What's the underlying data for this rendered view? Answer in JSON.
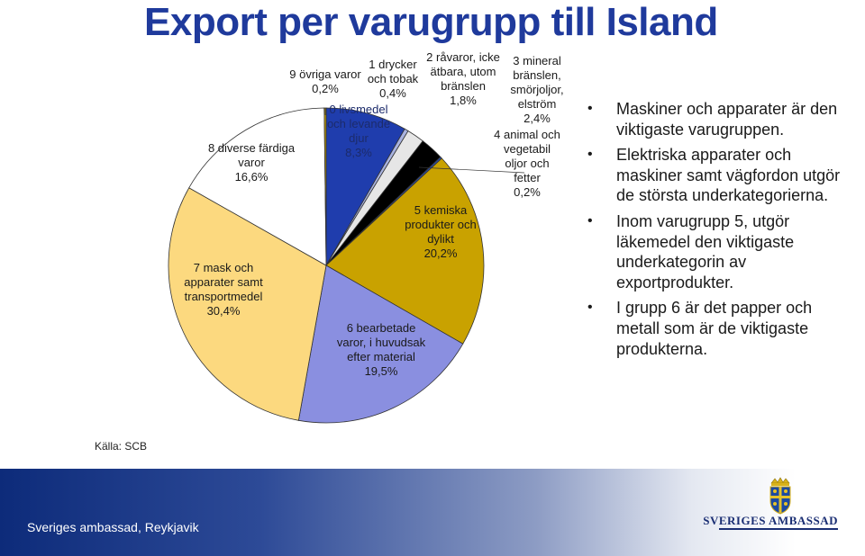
{
  "title": "Export per varugrupp till Island",
  "source": "Källa: SCB",
  "chart_data": {
    "type": "pie",
    "title": "",
    "slices": [
      {
        "label": "0 livsmedel och levande djur",
        "label_lines": [
          "0 livsmedel",
          "och levande",
          "djur"
        ],
        "value_text": "8,3%",
        "value": 8.3,
        "color": "#1f3dad"
      },
      {
        "label": "1 drycker och tobak",
        "label_lines": [
          "1 drycker",
          "och tobak"
        ],
        "value_text": "0,4%",
        "value": 0.4,
        "color": "#a9b3e0"
      },
      {
        "label": "2 råvaror, icke ätbara, utom bränslen",
        "label_lines": [
          "2 råvaror, icke",
          "ätbara, utom",
          "bränslen"
        ],
        "value_text": "1,8%",
        "value": 1.8,
        "color": "#e6e6e6"
      },
      {
        "label": "3 mineral bränslen, smörjoljor, elström",
        "label_lines": [
          "3 mineral",
          "bränslen,",
          "smörjoljor,",
          "elström"
        ],
        "value_text": "2,4%",
        "value": 2.4,
        "color": "#000000"
      },
      {
        "label": "4 animal och vegetabil oljor och fetter",
        "label_lines": [
          "4 animal och",
          "vegetabil",
          "oljor och",
          "fetter"
        ],
        "value_text": "0,2%",
        "value": 0.2,
        "color": "#2a4aa0"
      },
      {
        "label": "5 kemiska produkter och dylikt",
        "label_lines": [
          "5 kemiska",
          "produkter och",
          "dylikt"
        ],
        "value_text": "20,2%",
        "value": 20.2,
        "color": "#c9a200"
      },
      {
        "label": "6 bearbetade varor, i huvudsak efter material",
        "label_lines": [
          "6 bearbetade",
          "varor, i huvudsak",
          "efter material"
        ],
        "value_text": "19,5%",
        "value": 19.5,
        "color": "#8a8fe0"
      },
      {
        "label": "7 mask och apparater samt transportmedel",
        "label_lines": [
          "7 mask och",
          "apparater samt",
          "transportmedel"
        ],
        "value_text": "30,4%",
        "value": 30.4,
        "color": "#fcd97f"
      },
      {
        "label": "8 diverse färdiga varor",
        "label_lines": [
          "8 diverse färdiga",
          "varor"
        ],
        "value_text": "16,6%",
        "value": 16.6,
        "color": "#ffffff"
      },
      {
        "label": "9 övriga varor",
        "label_lines": [
          "9 övriga varor"
        ],
        "value_text": "0,2%",
        "value": 0.2,
        "color": "#c9a200"
      }
    ],
    "legend": "none",
    "start_angle_deg": 0,
    "direction": "clockwise"
  },
  "notes": [
    "Maskiner och apparater är den viktigaste varugruppen.",
    "Elektriska apparater och maskiner samt vägfordon utgör de största underkategorierna.",
    "Inom varugrupp 5, utgör läkemedel den viktigaste underkategorin av exportprodukter.",
    "I grupp 6 är det papper och metall som är de viktigaste produkterna."
  ],
  "footer": {
    "left_text": "Sveriges ambassad, Reykjavik",
    "brand": "SVERIGES AMBASSAD"
  },
  "colors": {
    "title": "#1f3a9c",
    "footer_dark": "#0d2b7a"
  }
}
